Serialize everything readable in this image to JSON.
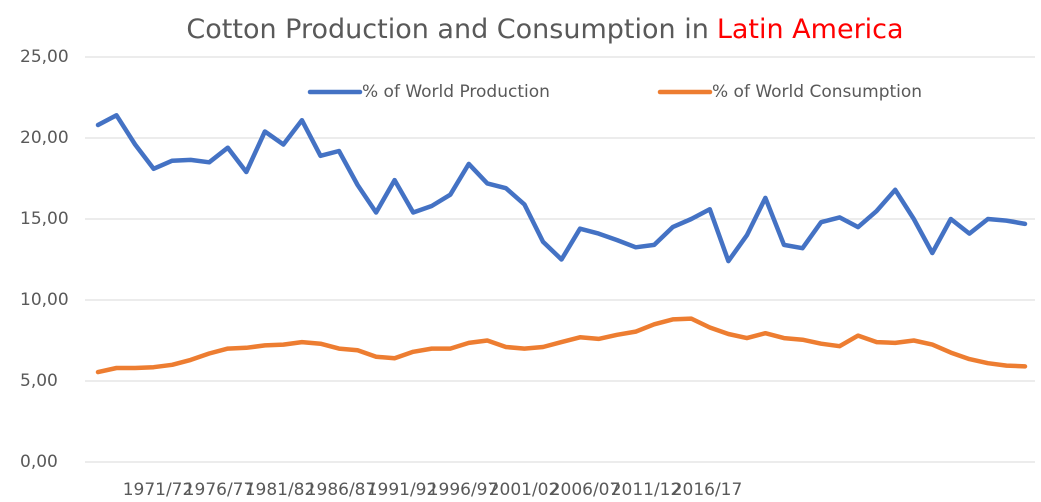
{
  "chart_data": {
    "type": "line",
    "title": {
      "text": "Cotton Production and Consumption in",
      "highlight": "Latin America",
      "highlight_color": "#ff0000"
    },
    "categories": [
      null,
      null,
      null,
      null,
      null,
      "1971/72",
      null,
      null,
      null,
      null,
      "1976/77",
      null,
      null,
      null,
      null,
      "1981/82",
      null,
      null,
      null,
      null,
      "1986/87",
      null,
      null,
      null,
      null,
      "1991/92",
      null,
      null,
      null,
      null,
      "1996/97",
      null,
      null,
      null,
      null,
      "2001/02",
      null,
      null,
      null,
      null,
      "2006/07",
      null,
      null,
      null,
      null,
      "2011/12",
      null,
      null,
      null,
      null,
      "2016/17"
    ],
    "series": [
      {
        "name": "% of World Production",
        "color": "#4472c4",
        "values": [
          20.8,
          21.4,
          19.6,
          18.1,
          18.6,
          18.65,
          18.5,
          19.4,
          17.9,
          20.4,
          19.6,
          21.1,
          18.9,
          19.2,
          17.1,
          15.4,
          17.4,
          15.4,
          15.8,
          16.5,
          18.4,
          17.2,
          16.9,
          15.9,
          13.6,
          12.5,
          14.4,
          14.1,
          13.7,
          13.25,
          13.4,
          14.5,
          15.0,
          15.6,
          12.4,
          14.0,
          16.3,
          13.4,
          13.2,
          14.8,
          15.1,
          14.5,
          15.5,
          16.8,
          15.0,
          12.9,
          15.0,
          14.1,
          15.0,
          14.9,
          14.7
        ]
      },
      {
        "name": "% of World Consumption",
        "color": "#ed7d31",
        "values": [
          5.55,
          5.8,
          5.8,
          5.85,
          6.0,
          6.3,
          6.7,
          7.0,
          7.05,
          7.2,
          7.25,
          7.4,
          7.3,
          7.0,
          6.9,
          6.5,
          6.4,
          6.8,
          7.0,
          7.0,
          7.35,
          7.5,
          7.1,
          7.0,
          7.1,
          7.4,
          7.7,
          7.6,
          7.85,
          8.05,
          8.5,
          8.8,
          8.85,
          8.3,
          7.9,
          7.65,
          7.95,
          7.65,
          7.55,
          7.3,
          7.15,
          7.8,
          7.4,
          7.35,
          7.5,
          7.25,
          6.75,
          6.35,
          6.1,
          5.95,
          5.9
        ]
      }
    ],
    "ylim": [
      0,
      25
    ],
    "yticks": [
      {
        "value": 0,
        "label": "0,00"
      },
      {
        "value": 5,
        "label": "5,00"
      },
      {
        "value": 10,
        "label": "10,00"
      },
      {
        "value": 15,
        "label": "15,00"
      },
      {
        "value": 20,
        "label": "20,00"
      },
      {
        "value": 25,
        "label": "25,00"
      }
    ],
    "grid": true,
    "legend": "top"
  }
}
